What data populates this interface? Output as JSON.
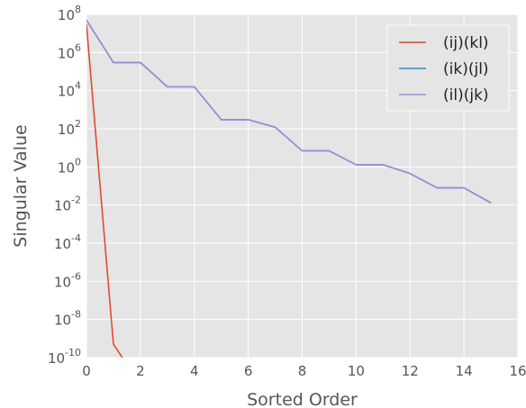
{
  "chart_data": {
    "type": "line",
    "title": "",
    "xlabel": "Sorted Order",
    "ylabel": "Singular Value",
    "xlim": [
      0,
      16
    ],
    "ylim": [
      1e-10,
      100000000.0
    ],
    "yscale": "log",
    "grid": true,
    "legend_position": "top-right",
    "x_ticks": [
      "0",
      "2",
      "4",
      "6",
      "8",
      "10",
      "12",
      "14",
      "16"
    ],
    "y_ticks": [
      {
        "base": "10",
        "exp": "8"
      },
      {
        "base": "10",
        "exp": "6"
      },
      {
        "base": "10",
        "exp": "4"
      },
      {
        "base": "10",
        "exp": "2"
      },
      {
        "base": "10",
        "exp": "0"
      },
      {
        "base": "10",
        "exp": "-2"
      },
      {
        "base": "10",
        "exp": "-4"
      },
      {
        "base": "10",
        "exp": "-6"
      },
      {
        "base": "10",
        "exp": "-8"
      },
      {
        "base": "10",
        "exp": "-10"
      }
    ],
    "series": [
      {
        "name": "(ij)(kl)",
        "color": "#e24a33",
        "x": [
          0,
          1,
          1.33
        ],
        "y": [
          30000000.0,
          5e-10,
          1e-10
        ]
      },
      {
        "name": "(ik)(jl)",
        "color": "#348abd",
        "x": [
          0,
          1,
          2,
          3,
          4,
          5,
          6,
          7,
          8,
          9,
          10,
          11,
          12,
          13,
          14,
          15
        ],
        "y": [
          50000000.0,
          300000,
          300000,
          16000,
          16000,
          300,
          300,
          120,
          7,
          7,
          1.3,
          1.3,
          0.45,
          0.08,
          0.08,
          0.013
        ]
      },
      {
        "name": "(il)(jk)",
        "color": "#988ed5",
        "x": [
          0,
          1,
          2,
          3,
          4,
          5,
          6,
          7,
          8,
          9,
          10,
          11,
          12,
          13,
          14,
          15
        ],
        "y": [
          50000000.0,
          300000,
          300000,
          16000,
          16000,
          300,
          300,
          120,
          7,
          7,
          1.3,
          1.3,
          0.45,
          0.08,
          0.08,
          0.013
        ]
      }
    ]
  }
}
